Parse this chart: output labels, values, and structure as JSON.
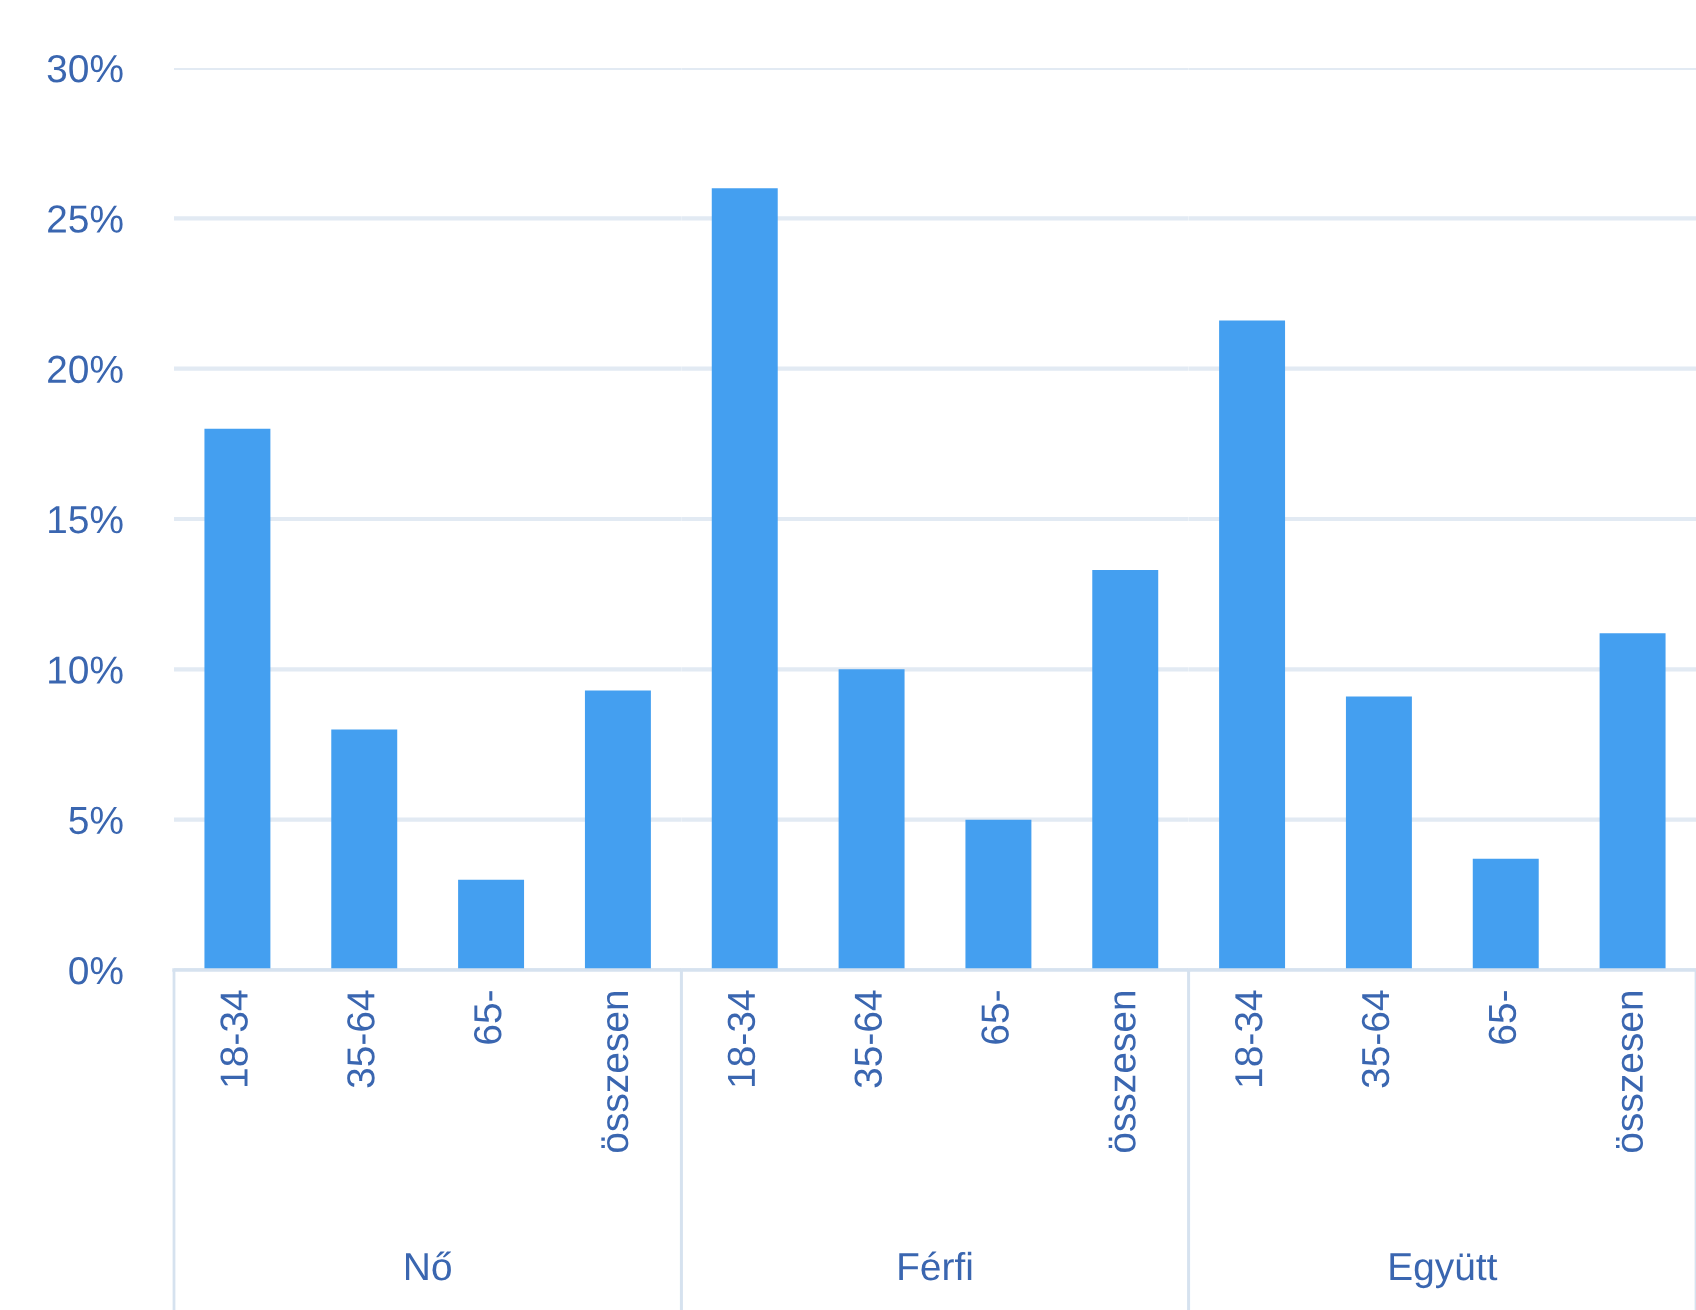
{
  "chart_data": [
    {
      "type": "bar",
      "categories": [
        "18-34",
        "35-64",
        "65-",
        "összesen"
      ],
      "values": [
        18,
        8,
        3,
        9.3
      ],
      "color": "#449ff0",
      "xlabel": "Nő",
      "ylim": [
        0,
        30
      ],
      "yticks": [
        {
          "value": 0,
          "label": "0%"
        },
        {
          "value": 5,
          "label": "5%"
        },
        {
          "value": 10,
          "label": "10%"
        },
        {
          "value": 15,
          "label": "15%"
        },
        {
          "value": 20,
          "label": "20%"
        },
        {
          "value": 25,
          "label": "25%"
        },
        {
          "value": 30,
          "label": "30%"
        }
      ],
      "grid": "y"
    },
    {
      "type": "bar",
      "categories": [
        "18-34",
        "35-64",
        "65-",
        "összesen"
      ],
      "values": [
        26,
        10,
        5,
        13.3
      ],
      "color": "#449ff0",
      "xlabel": "Férfi",
      "ylim": [
        0,
        30
      ],
      "yticks": [
        {
          "value": 0,
          "label": null
        },
        {
          "value": 5,
          "label": null
        },
        {
          "value": 10,
          "label": null
        },
        {
          "value": 15,
          "label": null
        },
        {
          "value": 20,
          "label": null
        },
        {
          "value": 25,
          "label": null
        },
        {
          "value": 30,
          "label": null
        }
      ],
      "grid": "y",
      "tick_labels": "x"
    },
    {
      "type": "bar",
      "categories": [
        "18-34",
        "35-64",
        "65-",
        "összesen"
      ],
      "values": [
        21.6,
        9.1,
        3.7,
        11.2
      ],
      "color": "#449ff0",
      "xlabel": "Együtt",
      "ylim": [
        0,
        30
      ],
      "yticks": [
        {
          "value": 0,
          "label": null
        },
        {
          "value": 5,
          "label": null
        },
        {
          "value": 10,
          "label": null
        },
        {
          "value": 15,
          "label": null
        },
        {
          "value": 20,
          "label": null
        },
        {
          "value": 25,
          "label": null
        },
        {
          "value": 30,
          "label": null
        }
      ],
      "grid": "y",
      "tick_labels": "x"
    }
  ]
}
